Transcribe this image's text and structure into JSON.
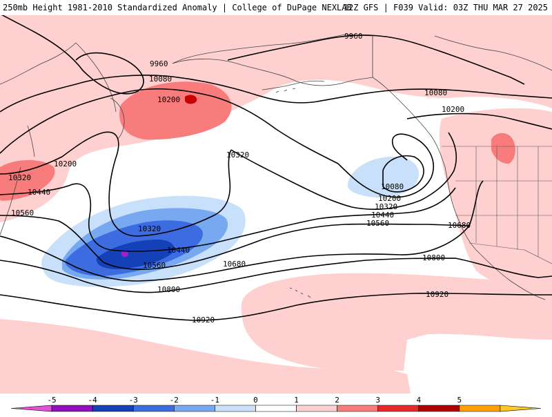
{
  "header": {
    "title_left": "250mb Height 1981-2010 Standardized Anomaly | College of DuPage NEXLAB",
    "title_right": "12Z GFS | F039 Valid: 03Z THU MAR 27 2025"
  },
  "contour_labels": {
    "c9960a": "9960",
    "c9960b": "9960",
    "c10080a": "10080",
    "c10080b": "10080",
    "c10080c": "10080",
    "c10200a": "10200",
    "c10200b": "10200",
    "c10200c": "10200",
    "c10200d": "10200",
    "c10320a": "10320",
    "c10320b": "10320",
    "c10320c": "10320",
    "c10320d": "10320",
    "c10440a": "10440",
    "c10440b": "10440",
    "c10440c": "10440",
    "c10560a": "10560",
    "c10560b": "10560",
    "c10560c": "10560",
    "c10680a": "10680",
    "c10680b": "10680",
    "c10800a": "10800",
    "c10800b": "10800",
    "c10920a": "10920",
    "c10920b": "10920"
  },
  "colorbar": {
    "ticks": [
      "-5",
      "-4",
      "-3",
      "-2",
      "-1",
      "0",
      "1",
      "2",
      "3",
      "4",
      "5"
    ],
    "colors": [
      "#e050d8",
      "#9010c0",
      "#1440b8",
      "#3c6ce0",
      "#78a8f0",
      "#c8e0fa",
      "#ffffff",
      "#ffd0d0",
      "#f87c7c",
      "#e82828",
      "#b00000",
      "#ffa000",
      "#ffc828"
    ]
  },
  "anomaly_colors": {
    "plus1": "#ffd0d0",
    "plus2": "#f87c7c",
    "plus3": "#c80000",
    "minus1": "#c8e0fa",
    "minus2": "#78a8f0",
    "minus3": "#3c6ce0",
    "minus4": "#1440b8",
    "minus5": "#a020d0"
  }
}
